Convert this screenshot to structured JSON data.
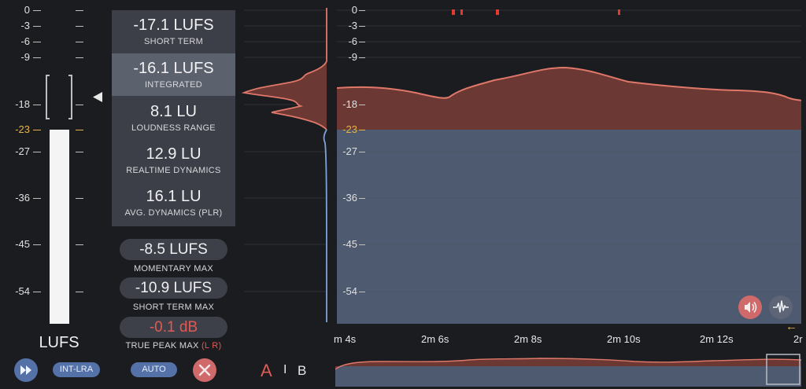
{
  "scale": {
    "left_labels": [
      "0",
      "-3",
      "-6",
      "-9",
      "-18",
      "-23",
      "-27",
      "-36",
      "-45",
      "-54"
    ],
    "reference": "-23",
    "unit_label": "LUFS"
  },
  "metrics": [
    {
      "value": "-17.1 LUFS",
      "label": "SHORT TERM",
      "selected": false
    },
    {
      "value": "-16.1 LUFS",
      "label": "INTEGRATED",
      "selected": true
    },
    {
      "value": "8.1 LU",
      "label": "LOUDNESS RANGE",
      "selected": false
    },
    {
      "value": "12.9 LU",
      "label": "REALTIME DYNAMICS",
      "selected": false
    },
    {
      "value": "16.1 LU",
      "label": "AVG. DYNAMICS (PLR)",
      "selected": false
    }
  ],
  "max_values": {
    "momentary_max": {
      "value": "-8.5 LUFS",
      "label": "MOMENTARY MAX"
    },
    "short_term_max": {
      "value": "-10.9 LUFS",
      "label": "SHORT TERM MAX"
    },
    "true_peak_max": {
      "value": "-0.1 dB",
      "label": "TRUE PEAK MAX",
      "channels": "(L R)"
    }
  },
  "controls": {
    "play_icon": "fast-forward-icon",
    "int_lra": "INT-LRA",
    "auto": "AUTO",
    "reset_icon": "close-icon"
  },
  "ab": {
    "a": "A",
    "sep": "I",
    "b": "B"
  },
  "graph": {
    "scale_labels": [
      "0",
      "-3",
      "-6",
      "-9",
      "-18",
      "-23",
      "-27",
      "-36",
      "-45",
      "-54"
    ],
    "time_labels": [
      "m 4s",
      "2m 6s",
      "2m 8s",
      "2m 10s",
      "2m 12s",
      "2r"
    ],
    "speaker_icon": "speaker-icon",
    "waveform_icon": "waveform-icon",
    "back_arrow": "←"
  },
  "colors": {
    "loudness_fill": "#6b3833",
    "loudness_line": "#e0786a",
    "below_fill": "#4d5a70",
    "reference": "#e7b44c",
    "accent_blue": "#5472a8",
    "peak_red": "#e23b2e"
  }
}
